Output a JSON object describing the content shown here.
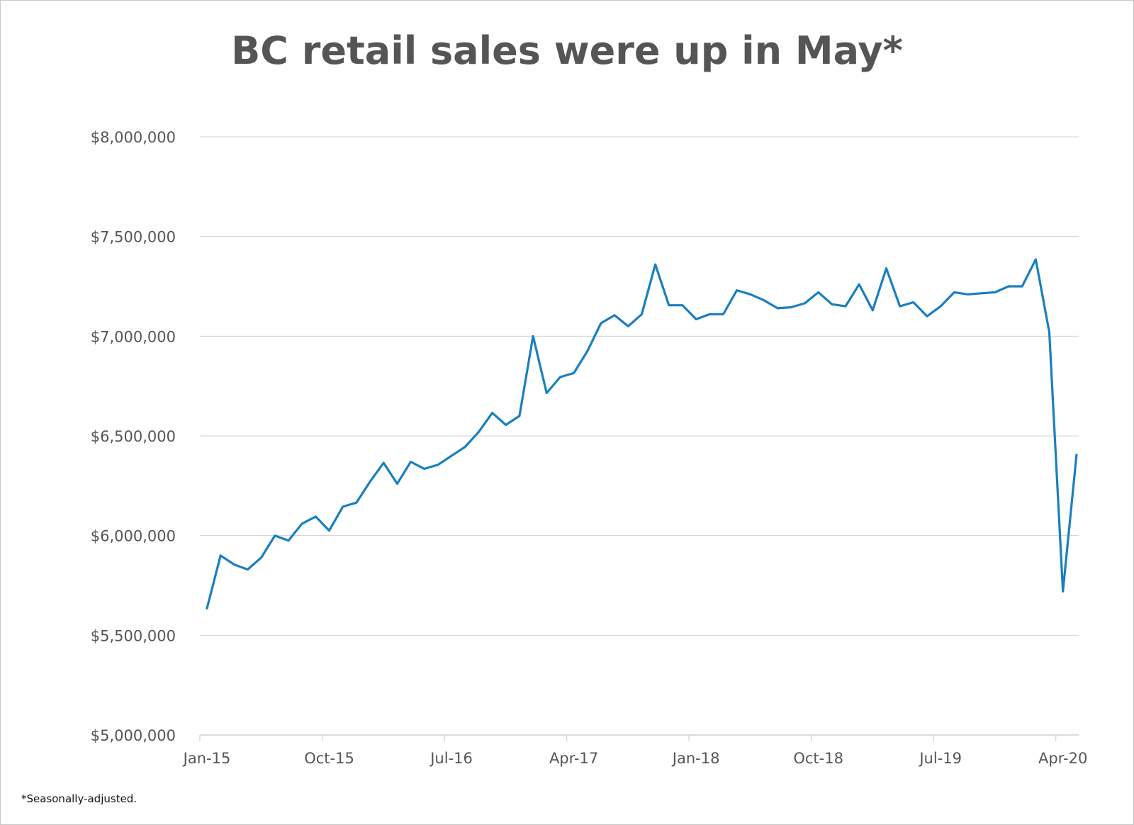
{
  "title": "BC retail sales were up in May*",
  "footnote": "*Seasonally-adjusted.",
  "colors": {
    "line": "#1a7fbf",
    "grid": "#d0d0d0",
    "text": "#555555"
  },
  "chart_data": {
    "type": "line",
    "title": "BC retail sales were up in May*",
    "xlabel": "",
    "ylabel": "",
    "ylim": [
      5000000,
      8000000
    ],
    "y_ticks": [
      5000000,
      5500000,
      6000000,
      6500000,
      7000000,
      7500000,
      8000000
    ],
    "y_tick_labels": [
      "$5,000,000",
      "$5,500,000",
      "$6,000,000",
      "$6,500,000",
      "$7,000,000",
      "$7,500,000",
      "$8,000,000"
    ],
    "x_tick_labels": [
      "Jan-15",
      "Oct-15",
      "Jul-16",
      "Apr-17",
      "Jan-18",
      "Oct-18",
      "Jul-19",
      "Apr-20"
    ],
    "x_tick_dates": [
      "2015-01",
      "2015-10",
      "2016-07",
      "2017-04",
      "2018-01",
      "2018-10",
      "2019-07",
      "2020-04"
    ],
    "grid": true,
    "legend": "none",
    "x": [
      "2015-01",
      "2015-02",
      "2015-03",
      "2015-04",
      "2015-05",
      "2015-06",
      "2015-07",
      "2015-08",
      "2015-09",
      "2015-10",
      "2015-11",
      "2015-12",
      "2016-01",
      "2016-02",
      "2016-03",
      "2016-04",
      "2016-05",
      "2016-06",
      "2016-07",
      "2016-08",
      "2016-09",
      "2016-10",
      "2016-11",
      "2016-12",
      "2017-01",
      "2017-02",
      "2017-03",
      "2017-04",
      "2017-05",
      "2017-06",
      "2017-07",
      "2017-08",
      "2017-09",
      "2017-10",
      "2017-11",
      "2017-12",
      "2018-01",
      "2018-02",
      "2018-03",
      "2018-04",
      "2018-05",
      "2018-06",
      "2018-07",
      "2018-08",
      "2018-09",
      "2018-10",
      "2018-11",
      "2018-12",
      "2019-01",
      "2019-02",
      "2019-03",
      "2019-04",
      "2019-05",
      "2019-06",
      "2019-07",
      "2019-08",
      "2019-09",
      "2019-10",
      "2019-11",
      "2019-12",
      "2020-01",
      "2020-02",
      "2020-03",
      "2020-04",
      "2020-05"
    ],
    "series": [
      {
        "values": [
          5635000,
          5900000,
          5855000,
          5830000,
          5890000,
          6000000,
          5975000,
          6060000,
          6095000,
          6025000,
          6145000,
          6165000,
          6270000,
          6365000,
          6260000,
          6370000,
          6335000,
          6355000,
          6400000,
          6445000,
          6520000,
          6615000,
          6555000,
          6600000,
          7000000,
          6715000,
          6795000,
          6815000,
          6925000,
          7065000,
          7105000,
          7050000,
          7110000,
          7360000,
          7155000,
          7155000,
          7085000,
          7110000,
          7110000,
          7230000,
          7210000,
          7180000,
          7140000,
          7145000,
          7165000,
          7220000,
          7160000,
          7150000,
          7260000,
          7130000,
          7340000,
          7150000,
          7170000,
          7100000,
          7150000,
          7220000,
          7210000,
          7215000,
          7220000,
          7250000,
          7250000,
          7385000,
          7020000,
          5720000,
          6405000
        ]
      }
    ]
  }
}
